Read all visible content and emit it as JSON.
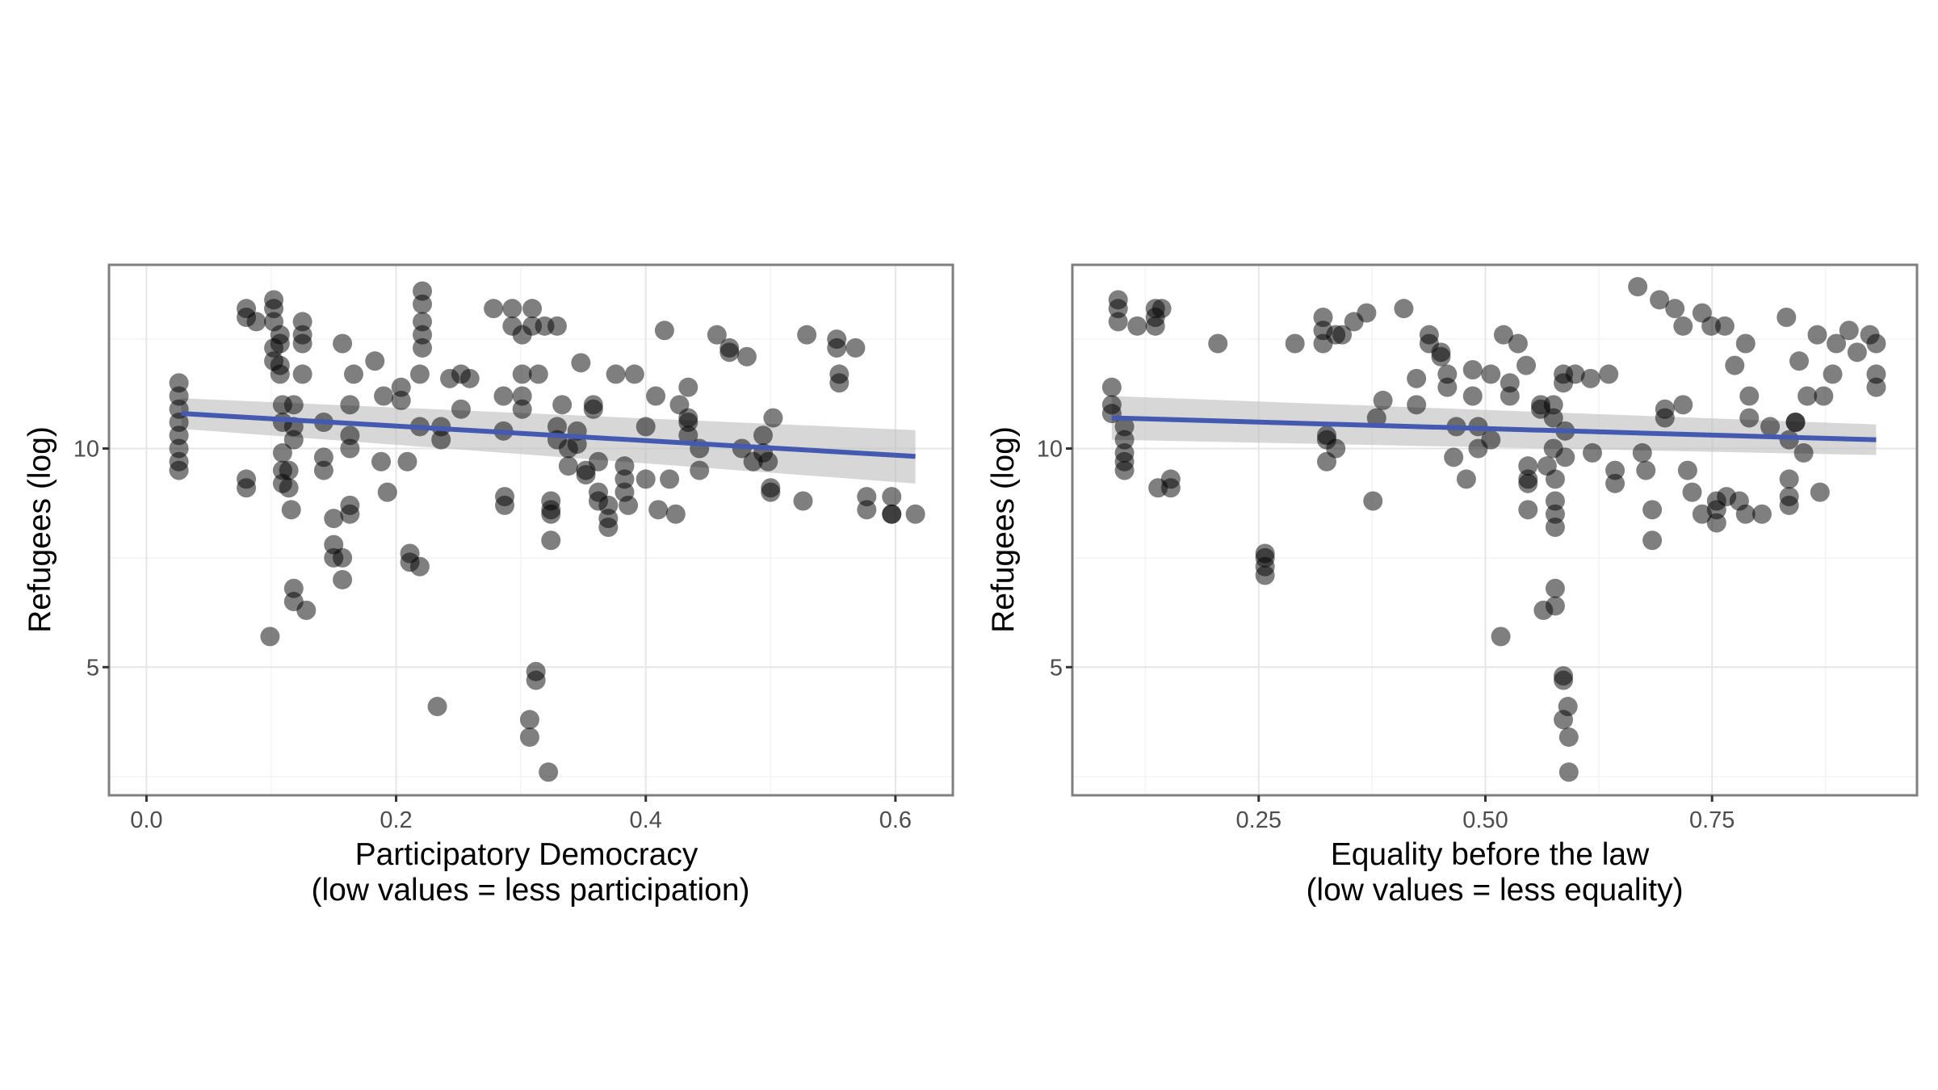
{
  "chart_data": [
    {
      "type": "scatter",
      "xlabel_lines": [
        "Participatory Democracy",
        "(low values = less participation)"
      ],
      "ylabel": "Refugees (log)",
      "xlim": [
        -0.03,
        0.646
      ],
      "ylim": [
        2.07,
        14.2
      ],
      "xticks": [
        {
          "v": 0.0,
          "label": "0.0"
        },
        {
          "v": 0.2,
          "label": "0.2"
        },
        {
          "v": 0.4,
          "label": "0.4"
        },
        {
          "v": 0.6,
          "label": "0.6"
        }
      ],
      "xminor": [
        0.1,
        0.3,
        0.5
      ],
      "yticks": [
        {
          "v": 5,
          "label": "5"
        },
        {
          "v": 10,
          "label": "10"
        }
      ],
      "yminor": [
        2.5,
        7.5,
        12.5
      ],
      "grid": true,
      "point_color": "#000000",
      "fit_color": "#4459b0",
      "band_color": "#bdbdbd",
      "fit": {
        "x": [
          0.028,
          0.616
        ],
        "y": [
          10.8,
          9.82
        ],
        "ci_lower": [
          10.45,
          9.2
        ],
        "ci_upper": [
          11.15,
          10.42
        ]
      },
      "points": [
        [
          0.026,
          11.5
        ],
        [
          0.026,
          11.2
        ],
        [
          0.026,
          10.9
        ],
        [
          0.026,
          10.6
        ],
        [
          0.026,
          10.3
        ],
        [
          0.026,
          10.0
        ],
        [
          0.026,
          9.7
        ],
        [
          0.026,
          9.5
        ],
        [
          0.08,
          13.2
        ],
        [
          0.08,
          13.0
        ],
        [
          0.08,
          9.3
        ],
        [
          0.08,
          9.1
        ],
        [
          0.088,
          12.9
        ],
        [
          0.102,
          13.4
        ],
        [
          0.102,
          13.2
        ],
        [
          0.102,
          12.9
        ],
        [
          0.102,
          12.3
        ],
        [
          0.102,
          12.0
        ],
        [
          0.107,
          12.6
        ],
        [
          0.107,
          12.4
        ],
        [
          0.107,
          11.9
        ],
        [
          0.107,
          11.7
        ],
        [
          0.109,
          11.0
        ],
        [
          0.109,
          10.6
        ],
        [
          0.109,
          9.9
        ],
        [
          0.109,
          9.5
        ],
        [
          0.109,
          9.2
        ],
        [
          0.114,
          9.5
        ],
        [
          0.114,
          9.1
        ],
        [
          0.116,
          8.6
        ],
        [
          0.118,
          6.8
        ],
        [
          0.118,
          6.5
        ],
        [
          0.128,
          6.3
        ],
        [
          0.099,
          5.7
        ],
        [
          0.125,
          12.9
        ],
        [
          0.125,
          12.6
        ],
        [
          0.125,
          12.4
        ],
        [
          0.125,
          11.7
        ],
        [
          0.118,
          11.0
        ],
        [
          0.118,
          10.5
        ],
        [
          0.118,
          10.2
        ],
        [
          0.142,
          10.6
        ],
        [
          0.142,
          9.8
        ],
        [
          0.142,
          9.5
        ],
        [
          0.157,
          12.4
        ],
        [
          0.163,
          11.0
        ],
        [
          0.163,
          10.3
        ],
        [
          0.163,
          10.0
        ],
        [
          0.15,
          8.4
        ],
        [
          0.15,
          7.8
        ],
        [
          0.15,
          7.5
        ],
        [
          0.157,
          7.5
        ],
        [
          0.157,
          7.0
        ],
        [
          0.163,
          8.7
        ],
        [
          0.163,
          8.5
        ],
        [
          0.166,
          11.7
        ],
        [
          0.183,
          12.0
        ],
        [
          0.19,
          11.2
        ],
        [
          0.193,
          9.0
        ],
        [
          0.188,
          9.7
        ],
        [
          0.204,
          11.4
        ],
        [
          0.204,
          11.1
        ],
        [
          0.209,
          9.7
        ],
        [
          0.211,
          7.6
        ],
        [
          0.211,
          7.4
        ],
        [
          0.219,
          7.3
        ],
        [
          0.221,
          13.6
        ],
        [
          0.221,
          13.3
        ],
        [
          0.221,
          12.9
        ],
        [
          0.221,
          12.6
        ],
        [
          0.221,
          12.3
        ],
        [
          0.219,
          11.7
        ],
        [
          0.219,
          10.5
        ],
        [
          0.233,
          4.1
        ],
        [
          0.236,
          10.5
        ],
        [
          0.236,
          10.2
        ],
        [
          0.243,
          11.6
        ],
        [
          0.252,
          11.7
        ],
        [
          0.252,
          10.9
        ],
        [
          0.259,
          11.6
        ],
        [
          0.278,
          13.2
        ],
        [
          0.286,
          11.2
        ],
        [
          0.286,
          10.4
        ],
        [
          0.287,
          8.7
        ],
        [
          0.287,
          8.9
        ],
        [
          0.293,
          13.2
        ],
        [
          0.293,
          12.8
        ],
        [
          0.301,
          12.6
        ],
        [
          0.301,
          11.7
        ],
        [
          0.301,
          11.2
        ],
        [
          0.301,
          10.9
        ],
        [
          0.309,
          13.2
        ],
        [
          0.309,
          12.8
        ],
        [
          0.314,
          11.7
        ],
        [
          0.319,
          12.8
        ],
        [
          0.324,
          8.8
        ],
        [
          0.324,
          8.6
        ],
        [
          0.324,
          8.5
        ],
        [
          0.324,
          7.9
        ],
        [
          0.329,
          12.8
        ],
        [
          0.307,
          3.8
        ],
        [
          0.307,
          3.4
        ],
        [
          0.312,
          4.9
        ],
        [
          0.312,
          4.7
        ],
        [
          0.322,
          2.6
        ],
        [
          0.329,
          10.5
        ],
        [
          0.329,
          10.2
        ],
        [
          0.333,
          11.0
        ],
        [
          0.338,
          10.0
        ],
        [
          0.338,
          9.6
        ],
        [
          0.345,
          10.4
        ],
        [
          0.345,
          10.1
        ],
        [
          0.348,
          11.96
        ],
        [
          0.352,
          9.4
        ],
        [
          0.352,
          9.5
        ],
        [
          0.358,
          10.9
        ],
        [
          0.358,
          11.0
        ],
        [
          0.362,
          9.7
        ],
        [
          0.362,
          9.0
        ],
        [
          0.362,
          8.8
        ],
        [
          0.37,
          8.7
        ],
        [
          0.37,
          8.4
        ],
        [
          0.37,
          8.2
        ],
        [
          0.376,
          11.7
        ],
        [
          0.383,
          9.6
        ],
        [
          0.383,
          9.3
        ],
        [
          0.383,
          9.0
        ],
        [
          0.386,
          8.7
        ],
        [
          0.391,
          11.7
        ],
        [
          0.4,
          10.5
        ],
        [
          0.4,
          9.3
        ],
        [
          0.408,
          11.2
        ],
        [
          0.41,
          8.6
        ],
        [
          0.415,
          12.7
        ],
        [
          0.419,
          9.3
        ],
        [
          0.424,
          8.5
        ],
        [
          0.427,
          11.0
        ],
        [
          0.434,
          11.4
        ],
        [
          0.434,
          10.7
        ],
        [
          0.434,
          10.6
        ],
        [
          0.434,
          10.3
        ],
        [
          0.443,
          10.0
        ],
        [
          0.443,
          9.5
        ],
        [
          0.457,
          12.6
        ],
        [
          0.467,
          12.3
        ],
        [
          0.467,
          12.2
        ],
        [
          0.481,
          12.1
        ],
        [
          0.477,
          10.0
        ],
        [
          0.486,
          9.7
        ],
        [
          0.494,
          9.9
        ],
        [
          0.494,
          10.3
        ],
        [
          0.498,
          9.7
        ],
        [
          0.502,
          10.7
        ],
        [
          0.5,
          9.1
        ],
        [
          0.5,
          9.0
        ],
        [
          0.526,
          8.8
        ],
        [
          0.529,
          12.6
        ],
        [
          0.553,
          12.5
        ],
        [
          0.553,
          12.3
        ],
        [
          0.555,
          11.7
        ],
        [
          0.555,
          11.5
        ],
        [
          0.568,
          12.3
        ],
        [
          0.577,
          8.9
        ],
        [
          0.577,
          8.6
        ],
        [
          0.597,
          8.9
        ],
        [
          0.597,
          8.5
        ],
        [
          0.597,
          8.5
        ],
        [
          0.616,
          8.5
        ]
      ]
    },
    {
      "type": "scatter",
      "xlabel_lines": [
        "Equality before the law",
        "(low values = less equality)"
      ],
      "ylabel": "Refugees (log)",
      "xlim": [
        0.0445,
        0.976
      ],
      "ylim": [
        2.07,
        14.2
      ],
      "xticks": [
        {
          "v": 0.25,
          "label": "0.25"
        },
        {
          "v": 0.5,
          "label": "0.50"
        },
        {
          "v": 0.75,
          "label": "0.75"
        }
      ],
      "xminor": [
        0.125,
        0.375,
        0.625,
        0.875
      ],
      "yticks": [
        {
          "v": 5,
          "label": "5"
        },
        {
          "v": 10,
          "label": "10"
        }
      ],
      "yminor": [
        2.5,
        7.5,
        12.5
      ],
      "grid": true,
      "point_color": "#000000",
      "fit_color": "#4459b0",
      "band_color": "#bdbdbd",
      "fit": {
        "x": [
          0.088,
          0.931
        ],
        "y": [
          10.7,
          10.2
        ],
        "ci_lower": [
          10.2,
          9.85
        ],
        "ci_upper": [
          11.2,
          10.55
        ]
      },
      "points": [
        [
          0.088,
          11.4
        ],
        [
          0.088,
          11.0
        ],
        [
          0.088,
          10.8
        ],
        [
          0.095,
          13.4
        ],
        [
          0.095,
          13.2
        ],
        [
          0.095,
          12.9
        ],
        [
          0.102,
          10.5
        ],
        [
          0.102,
          10.2
        ],
        [
          0.102,
          9.9
        ],
        [
          0.102,
          9.7
        ],
        [
          0.102,
          9.5
        ],
        [
          0.116,
          12.8
        ],
        [
          0.136,
          12.8
        ],
        [
          0.136,
          13.0
        ],
        [
          0.136,
          13.2
        ],
        [
          0.143,
          13.2
        ],
        [
          0.139,
          9.1
        ],
        [
          0.153,
          9.3
        ],
        [
          0.153,
          9.1
        ],
        [
          0.205,
          12.4
        ],
        [
          0.257,
          7.6
        ],
        [
          0.257,
          7.5
        ],
        [
          0.257,
          7.3
        ],
        [
          0.257,
          7.1
        ],
        [
          0.29,
          12.4
        ],
        [
          0.321,
          13.0
        ],
        [
          0.321,
          12.7
        ],
        [
          0.321,
          12.4
        ],
        [
          0.325,
          10.3
        ],
        [
          0.325,
          10.2
        ],
        [
          0.325,
          9.7
        ],
        [
          0.335,
          10.0
        ],
        [
          0.335,
          12.6
        ],
        [
          0.342,
          12.6
        ],
        [
          0.355,
          12.9
        ],
        [
          0.369,
          13.1
        ],
        [
          0.41,
          13.2
        ],
        [
          0.376,
          8.8
        ],
        [
          0.38,
          10.7
        ],
        [
          0.387,
          11.1
        ],
        [
          0.424,
          11.6
        ],
        [
          0.424,
          11.0
        ],
        [
          0.438,
          12.6
        ],
        [
          0.438,
          12.4
        ],
        [
          0.451,
          12.2
        ],
        [
          0.451,
          12.1
        ],
        [
          0.458,
          11.7
        ],
        [
          0.458,
          11.4
        ],
        [
          0.465,
          9.8
        ],
        [
          0.468,
          10.5
        ],
        [
          0.479,
          9.3
        ],
        [
          0.486,
          11.2
        ],
        [
          0.486,
          11.8
        ],
        [
          0.492,
          10.5
        ],
        [
          0.492,
          10.0
        ],
        [
          0.506,
          11.7
        ],
        [
          0.506,
          10.2
        ],
        [
          0.52,
          12.6
        ],
        [
          0.527,
          11.5
        ],
        [
          0.527,
          11.2
        ],
        [
          0.536,
          12.4
        ],
        [
          0.545,
          11.9
        ],
        [
          0.517,
          5.7
        ],
        [
          0.547,
          9.6
        ],
        [
          0.547,
          9.3
        ],
        [
          0.547,
          9.2
        ],
        [
          0.547,
          8.6
        ],
        [
          0.561,
          11.0
        ],
        [
          0.561,
          10.9
        ],
        [
          0.568,
          9.6
        ],
        [
          0.564,
          6.3
        ],
        [
          0.575,
          11.0
        ],
        [
          0.575,
          10.7
        ],
        [
          0.575,
          10.0
        ],
        [
          0.577,
          9.3
        ],
        [
          0.577,
          8.8
        ],
        [
          0.577,
          8.5
        ],
        [
          0.577,
          8.2
        ],
        [
          0.577,
          6.8
        ],
        [
          0.577,
          6.4
        ],
        [
          0.586,
          11.7
        ],
        [
          0.586,
          11.5
        ],
        [
          0.588,
          10.4
        ],
        [
          0.588,
          9.8
        ],
        [
          0.586,
          4.8
        ],
        [
          0.586,
          4.7
        ],
        [
          0.591,
          4.1
        ],
        [
          0.586,
          3.8
        ],
        [
          0.592,
          3.4
        ],
        [
          0.592,
          2.6
        ],
        [
          0.599,
          11.7
        ],
        [
          0.616,
          11.6
        ],
        [
          0.636,
          11.7
        ],
        [
          0.618,
          9.9
        ],
        [
          0.643,
          9.5
        ],
        [
          0.643,
          9.2
        ],
        [
          0.668,
          13.7
        ],
        [
          0.673,
          9.9
        ],
        [
          0.677,
          9.5
        ],
        [
          0.684,
          8.6
        ],
        [
          0.684,
          7.9
        ],
        [
          0.692,
          13.4
        ],
        [
          0.698,
          10.9
        ],
        [
          0.698,
          10.7
        ],
        [
          0.709,
          13.2
        ],
        [
          0.718,
          12.8
        ],
        [
          0.718,
          11.0
        ],
        [
          0.723,
          9.5
        ],
        [
          0.728,
          9.0
        ],
        [
          0.739,
          13.1
        ],
        [
          0.739,
          8.5
        ],
        [
          0.749,
          12.8
        ],
        [
          0.755,
          8.8
        ],
        [
          0.755,
          8.6
        ],
        [
          0.755,
          8.3
        ],
        [
          0.764,
          12.8
        ],
        [
          0.766,
          8.9
        ],
        [
          0.775,
          11.9
        ],
        [
          0.78,
          8.8
        ],
        [
          0.787,
          8.5
        ],
        [
          0.787,
          12.4
        ],
        [
          0.791,
          11.2
        ],
        [
          0.791,
          10.7
        ],
        [
          0.805,
          8.5
        ],
        [
          0.814,
          10.5
        ],
        [
          0.832,
          13.0
        ],
        [
          0.835,
          10.2
        ],
        [
          0.835,
          9.3
        ],
        [
          0.835,
          8.9
        ],
        [
          0.835,
          8.7
        ],
        [
          0.842,
          10.6
        ],
        [
          0.842,
          10.6
        ],
        [
          0.846,
          12.0
        ],
        [
          0.851,
          9.9
        ],
        [
          0.855,
          11.2
        ],
        [
          0.866,
          12.6
        ],
        [
          0.869,
          9.0
        ],
        [
          0.873,
          11.2
        ],
        [
          0.883,
          11.7
        ],
        [
          0.887,
          12.4
        ],
        [
          0.901,
          12.7
        ],
        [
          0.91,
          12.2
        ],
        [
          0.924,
          12.6
        ],
        [
          0.931,
          12.4
        ],
        [
          0.931,
          11.7
        ],
        [
          0.931,
          11.4
        ]
      ]
    }
  ]
}
